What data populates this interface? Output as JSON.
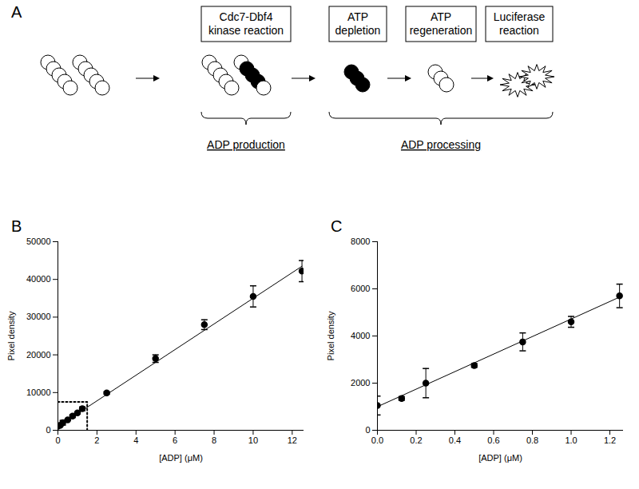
{
  "diagram": {
    "panel": "A",
    "boxes": [
      [
        "Cdc7-Dbf4",
        "kinase reaction"
      ],
      [
        "ATP",
        "depletion"
      ],
      [
        "ATP",
        "regeneration"
      ],
      [
        "Luciferase",
        "reaction"
      ]
    ],
    "braces": [
      "ADP production",
      "ADP processing"
    ]
  },
  "chart_data": [
    {
      "type": "scatter",
      "title": "B",
      "x_label": "[ADP] (μM)",
      "y_label": "Pixel density",
      "xlim": [
        0,
        12.6
      ],
      "ylim": [
        0,
        50000
      ],
      "xticks": [
        0,
        2,
        4,
        6,
        8,
        10,
        12
      ],
      "yticks": [
        0,
        10000,
        20000,
        30000,
        40000,
        50000
      ],
      "series": [
        {
          "type": "scatter",
          "marker": "circle",
          "color": "#000000",
          "x": [
            0,
            0.125,
            0.25,
            0.5,
            0.75,
            1.0,
            1.25,
            2.5,
            5,
            7.5,
            10,
            12.5
          ],
          "values": [
            1050,
            1350,
            2000,
            2750,
            3750,
            4600,
            5700,
            9900,
            19000,
            28000,
            35500,
            42200
          ],
          "errors": [
            400,
            80,
            620,
            80,
            380,
            230,
            500,
            300,
            1000,
            1300,
            2800,
            2800
          ]
        },
        {
          "type": "line",
          "line_style": "solid",
          "color": "#000000",
          "x": [
            0,
            12.5
          ],
          "values": [
            1000,
            43500
          ]
        },
        {
          "type": "line",
          "line_style": "dotted",
          "color": "#000000",
          "x": [
            0,
            1.5,
            1.5
          ],
          "values": [
            7500,
            7500,
            0
          ]
        }
      ]
    },
    {
      "type": "scatter",
      "title": "C",
      "x_label": "[ADP] (μM)",
      "y_label": "Pixel density",
      "xlim": [
        0,
        1.27
      ],
      "ylim": [
        0,
        8000
      ],
      "xticks": [
        {
          "value": 0,
          "label": "0.0"
        },
        0.2,
        0.4,
        0.6,
        0.8,
        {
          "value": 1,
          "label": "1.0"
        },
        1.2
      ],
      "yticks": [
        0,
        2000,
        4000,
        6000,
        8000
      ],
      "series": [
        {
          "type": "scatter",
          "marker": "circle",
          "color": "#000000",
          "x": [
            0,
            0.125,
            0.25,
            0.5,
            0.75,
            1.0,
            1.25
          ],
          "values": [
            1050,
            1350,
            2000,
            2750,
            3750,
            4600,
            5700
          ],
          "errors": [
            400,
            80,
            620,
            80,
            380,
            230,
            500
          ]
        },
        {
          "type": "line",
          "line_style": "solid",
          "color": "#000000",
          "x": [
            0,
            1.25
          ],
          "values": [
            1000,
            5650
          ]
        }
      ]
    }
  ]
}
